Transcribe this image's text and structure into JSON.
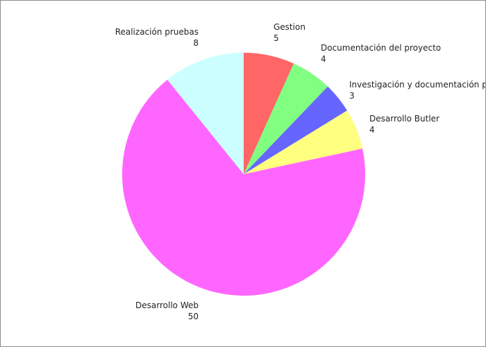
{
  "chart_data": {
    "type": "pie",
    "title": "",
    "start_angle_deg": 0,
    "direction": "clockwise",
    "slices": [
      {
        "label": "Gestion",
        "value": 5,
        "color": "#ff6666"
      },
      {
        "label": "Documentación del proyecto",
        "value": 4,
        "color": "#80ff80"
      },
      {
        "label": "Investigación y documentación previa",
        "value": 3,
        "color": "#6666ff"
      },
      {
        "label": "Desarrollo Butler",
        "value": 4,
        "color": "#ffff80"
      },
      {
        "label": "Desarrollo Web",
        "value": 50,
        "color": "#ff66ff"
      },
      {
        "label": "Realización pruebas",
        "value": 8,
        "color": "#ccffff"
      }
    ]
  }
}
